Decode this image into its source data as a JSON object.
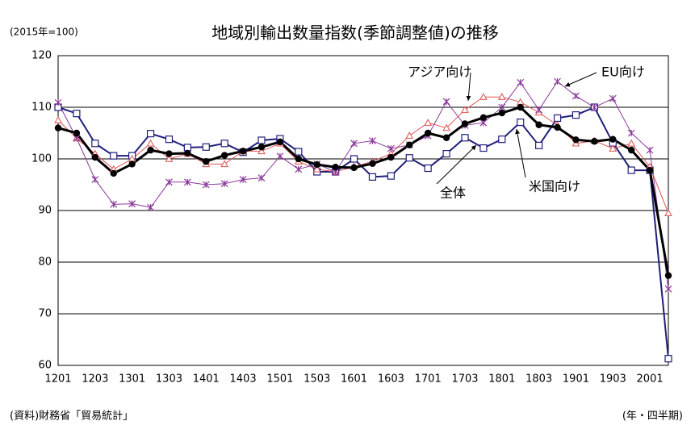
{
  "chart_data": {
    "type": "line",
    "title": "地域別輸出数量指数(季節調整値)の推移",
    "unit_note": "(2015年=100)",
    "source": "(資料)財務省「貿易統計」",
    "x_label": "(年・四半期)",
    "categories": [
      "1201",
      null,
      "1203",
      null,
      "1301",
      null,
      "1303",
      null,
      "1401",
      null,
      "1403",
      null,
      "1501",
      null,
      "1503",
      null,
      "1601",
      null,
      "1603",
      null,
      "1701",
      null,
      "1703",
      null,
      "1801",
      null,
      "1803",
      null,
      "1901",
      null,
      "1903",
      null,
      "2001",
      null
    ],
    "ylim": [
      60,
      120
    ],
    "yticks": [
      60,
      70,
      80,
      90,
      100,
      110,
      120
    ],
    "grid": true,
    "series": [
      {
        "name": "米国向け",
        "color": "#1f1f7a",
        "marker": "square",
        "values": [
          110,
          108.8,
          103,
          100.6,
          100.6,
          104.9,
          103.8,
          102.2,
          102.3,
          103,
          101.3,
          103.6,
          103.9,
          101.4,
          97.5,
          97.5,
          100,
          96.5,
          96.7,
          100.2,
          98.2,
          101,
          104.1,
          102.1,
          103.8,
          107.1,
          102.6,
          107.9,
          108.5,
          110,
          103.1,
          97.8,
          97.8,
          61.3
        ]
      },
      {
        "name": "アジア向け",
        "color": "#e05050",
        "marker": "triangle",
        "values": [
          107.5,
          104,
          101,
          98,
          100,
          103,
          100,
          101,
          99,
          99,
          101.5,
          101.5,
          103,
          99.5,
          98,
          97.5,
          98.5,
          99.5,
          101,
          104.5,
          107,
          106,
          109.5,
          112,
          112,
          111,
          109,
          106.5,
          103,
          103.5,
          102,
          103,
          98.5,
          89.5
        ]
      },
      {
        "name": "EU向け",
        "color": "#8a3a9a",
        "marker": "cross",
        "values": [
          110.9,
          104,
          96,
          91.2,
          91.3,
          90.6,
          95.5,
          95.5,
          95,
          95.2,
          96,
          96.3,
          100.5,
          98,
          99,
          97.5,
          103,
          103.5,
          102,
          102.7,
          104.5,
          111.1,
          106.5,
          107,
          110,
          114.8,
          109.5,
          115,
          112.2,
          110,
          111.7,
          105,
          101.7,
          74.8
        ]
      },
      {
        "name": "全体",
        "color": "#000000",
        "marker": "circle",
        "values": [
          106,
          105,
          100.3,
          97.2,
          99,
          101.7,
          101,
          101.1,
          99.5,
          100.7,
          101.5,
          102.3,
          103.3,
          100,
          98.9,
          98.4,
          98.3,
          99.1,
          100.3,
          102.7,
          105,
          104.1,
          106.8,
          108,
          108.9,
          110,
          106.6,
          106.1,
          103.7,
          103.4,
          103.8,
          101.7,
          97.8,
          77.4
        ]
      }
    ]
  }
}
